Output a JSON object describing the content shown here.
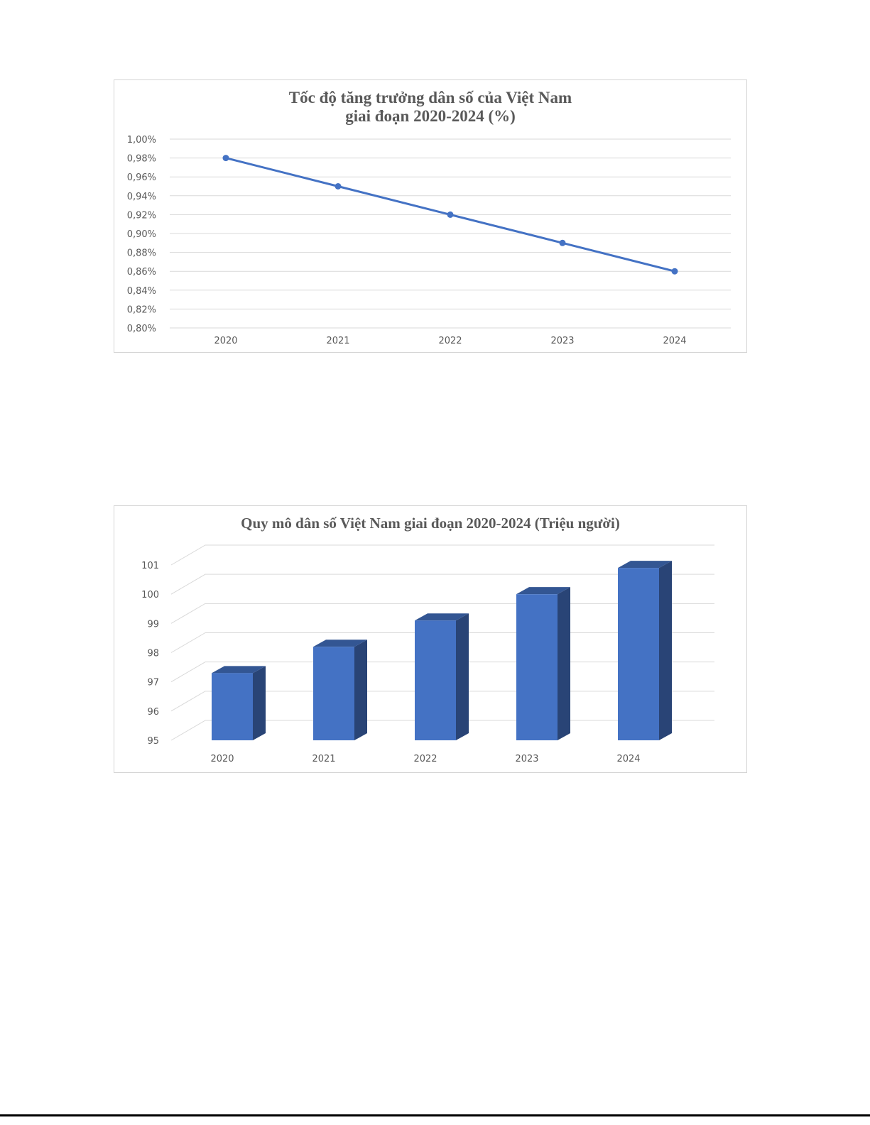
{
  "chart_data": [
    {
      "type": "line",
      "title_lines": [
        "Tốc độ tăng trưởng dân số của Việt Nam",
        "giai đoạn 2020-2024 (%)"
      ],
      "categories": [
        "2020",
        "2021",
        "2022",
        "2023",
        "2024"
      ],
      "values": [
        0.98,
        0.95,
        0.92,
        0.89,
        0.86
      ],
      "ylim": [
        0.8,
        1.0
      ],
      "yticks": [
        "0,80%",
        "0,82%",
        "0,84%",
        "0,86%",
        "0,88%",
        "0,90%",
        "0,92%",
        "0,94%",
        "0,96%",
        "0,98%",
        "1,00%"
      ],
      "grid": true,
      "color": "#4472C4"
    },
    {
      "type": "bar",
      "style": "3d-column",
      "title_lines": [
        "Quy mô dân số Việt Nam giai đoạn 2020-2024 (Triệu người)"
      ],
      "categories": [
        "2020",
        "2021",
        "2022",
        "2023",
        "2024"
      ],
      "values": [
        97.3,
        98.2,
        99.1,
        100.0,
        100.9
      ],
      "ylim": [
        95,
        101
      ],
      "yticks": [
        "95",
        "96",
        "97",
        "98",
        "99",
        "100",
        "101"
      ],
      "grid": true,
      "color": "#4472C4"
    }
  ]
}
